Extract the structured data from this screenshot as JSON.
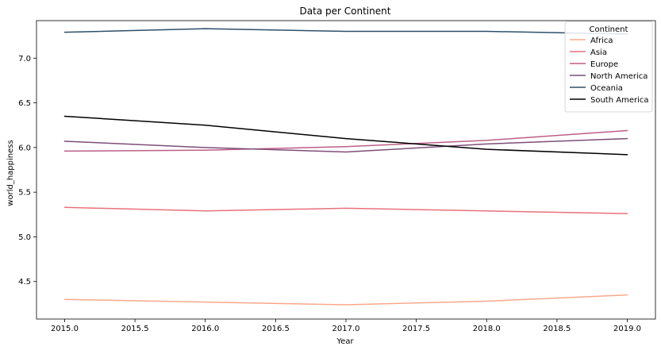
{
  "chart_data": {
    "type": "line",
    "title": "Data per Continent",
    "xlabel": "Year",
    "ylabel": "world_happiness",
    "x": [
      2015,
      2016,
      2017,
      2018,
      2019
    ],
    "xlim": [
      2014.8,
      2019.2
    ],
    "ylim": [
      4.08,
      7.42
    ],
    "x_ticks": [
      "2015.0",
      "2015.5",
      "2016.0",
      "2016.5",
      "2017.0",
      "2017.5",
      "2018.0",
      "2018.5",
      "2019.0"
    ],
    "x_tick_values": [
      2015.0,
      2015.5,
      2016.0,
      2016.5,
      2017.0,
      2017.5,
      2018.0,
      2018.5,
      2019.0
    ],
    "y_ticks": [
      "4.5",
      "5.0",
      "5.5",
      "6.0",
      "6.5",
      "7.0"
    ],
    "y_tick_values": [
      4.5,
      5.0,
      5.5,
      6.0,
      6.5,
      7.0
    ],
    "grid": false,
    "legend": {
      "title": "Continent",
      "placement": "top-right"
    },
    "series": [
      {
        "name": "Africa",
        "color": "#f9a98c",
        "values": [
          4.3,
          4.27,
          4.24,
          4.28,
          4.35
        ]
      },
      {
        "name": "Asia",
        "color": "#e8727a",
        "values": [
          5.33,
          5.29,
          5.32,
          5.29,
          5.26
        ]
      },
      {
        "name": "Europe",
        "color": "#bd5f86",
        "values": [
          5.96,
          5.97,
          6.01,
          6.08,
          6.19
        ]
      },
      {
        "name": "North America",
        "color": "#7d4f7a",
        "values": [
          6.07,
          6.0,
          5.95,
          6.04,
          6.1
        ]
      },
      {
        "name": "Oceania",
        "color": "#2e4f6b",
        "values": [
          7.29,
          7.33,
          7.3,
          7.3,
          7.27
        ]
      },
      {
        "name": "South America",
        "color": "#000000",
        "values": [
          6.35,
          6.25,
          6.1,
          5.98,
          5.92
        ]
      }
    ]
  }
}
